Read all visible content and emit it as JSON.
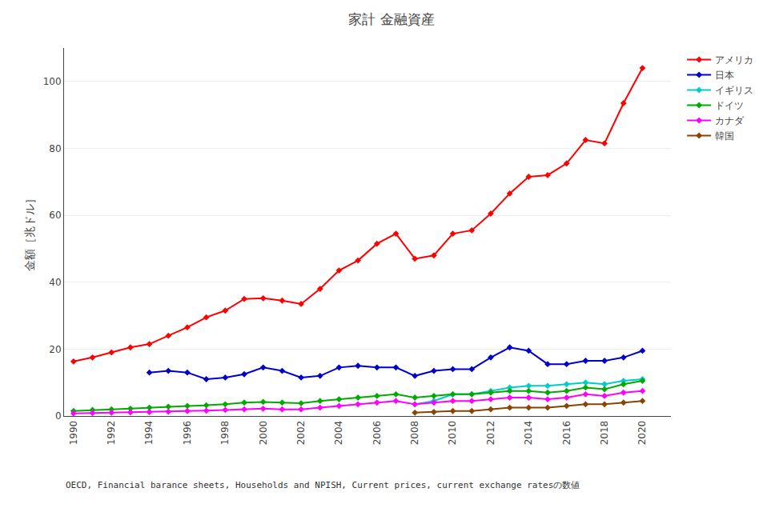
{
  "chart_data": {
    "type": "line",
    "title": "家計 金融資産",
    "y_label": "金額［兆ドル］",
    "annotations": [
      "OECD, Financial barance sheets, Households and NPISH, Current prices, current exchange ratesの数値"
    ],
    "x": [
      1990,
      1991,
      1992,
      1993,
      1994,
      1995,
      1996,
      1997,
      1998,
      1999,
      2000,
      2001,
      2002,
      2003,
      2004,
      2005,
      2006,
      2007,
      2008,
      2009,
      2010,
      2011,
      2012,
      2013,
      2014,
      2015,
      2016,
      2017,
      2018,
      2019,
      2020
    ],
    "series": [
      {
        "name": "アメリカ",
        "color": "#ff0000",
        "values": [
          16.3,
          17.5,
          19.0,
          20.5,
          21.5,
          24.0,
          26.5,
          29.5,
          31.5,
          35.0,
          35.2,
          34.5,
          33.5,
          38.0,
          43.5,
          46.5,
          51.5,
          54.5,
          47.0,
          48.0,
          54.5,
          55.5,
          60.5,
          66.5,
          71.5,
          72.0,
          75.5,
          82.5,
          81.5,
          93.5,
          104.0
        ]
      },
      {
        "name": "日本",
        "color": "#0000cc",
        "values": [
          null,
          null,
          null,
          null,
          13.0,
          13.5,
          13.0,
          11.0,
          11.5,
          12.5,
          14.5,
          13.5,
          11.5,
          12.0,
          14.5,
          15.0,
          14.5,
          14.5,
          12.0,
          13.5,
          14.0,
          14.0,
          17.5,
          20.5,
          19.5,
          15.5,
          15.5,
          16.5,
          16.5,
          17.5,
          19.5
        ]
      },
      {
        "name": "イギリス",
        "color": "#00cccc",
        "values": [
          null,
          null,
          null,
          null,
          null,
          null,
          null,
          null,
          null,
          null,
          null,
          null,
          null,
          null,
          null,
          null,
          null,
          null,
          3.5,
          4.5,
          6.5,
          6.5,
          7.5,
          8.5,
          9.0,
          9.0,
          9.5,
          10.0,
          9.5,
          10.5,
          11.0
        ]
      },
      {
        "name": "ドイツ",
        "color": "#00aa00",
        "values": [
          1.5,
          1.8,
          2.0,
          2.2,
          2.5,
          2.8,
          3.0,
          3.2,
          3.5,
          4.0,
          4.2,
          4.0,
          3.8,
          4.5,
          5.0,
          5.5,
          6.0,
          6.5,
          5.5,
          6.0,
          6.5,
          6.5,
          7.0,
          7.5,
          7.5,
          7.0,
          7.5,
          8.5,
          8.0,
          9.5,
          10.5
        ]
      },
      {
        "name": "カナダ",
        "color": "#ff00ff",
        "values": [
          0.8,
          0.9,
          1.0,
          1.1,
          1.2,
          1.3,
          1.5,
          1.6,
          1.8,
          2.0,
          2.2,
          2.0,
          2.0,
          2.5,
          3.0,
          3.5,
          4.0,
          4.5,
          3.5,
          4.0,
          4.5,
          4.5,
          5.0,
          5.5,
          5.5,
          5.0,
          5.5,
          6.5,
          6.0,
          7.0,
          7.5
        ]
      },
      {
        "name": "韓国",
        "color": "#884400",
        "values": [
          null,
          null,
          null,
          null,
          null,
          null,
          null,
          null,
          null,
          null,
          null,
          null,
          null,
          null,
          null,
          null,
          null,
          null,
          1.0,
          1.2,
          1.5,
          1.5,
          2.0,
          2.5,
          2.5,
          2.5,
          3.0,
          3.5,
          3.5,
          4.0,
          4.5
        ]
      }
    ],
    "xlim": [
      1989.5,
      2021.5
    ],
    "xticks": [
      1990,
      1992,
      1994,
      1996,
      1998,
      2000,
      2002,
      2004,
      2006,
      2008,
      2010,
      2012,
      2014,
      2016,
      2018,
      2020
    ],
    "ylim": [
      0,
      110
    ],
    "yticks": [
      0,
      20,
      40,
      60,
      80,
      100
    ],
    "grid": "y",
    "legend": "right",
    "marker": "diamond",
    "line_style": "solid"
  }
}
